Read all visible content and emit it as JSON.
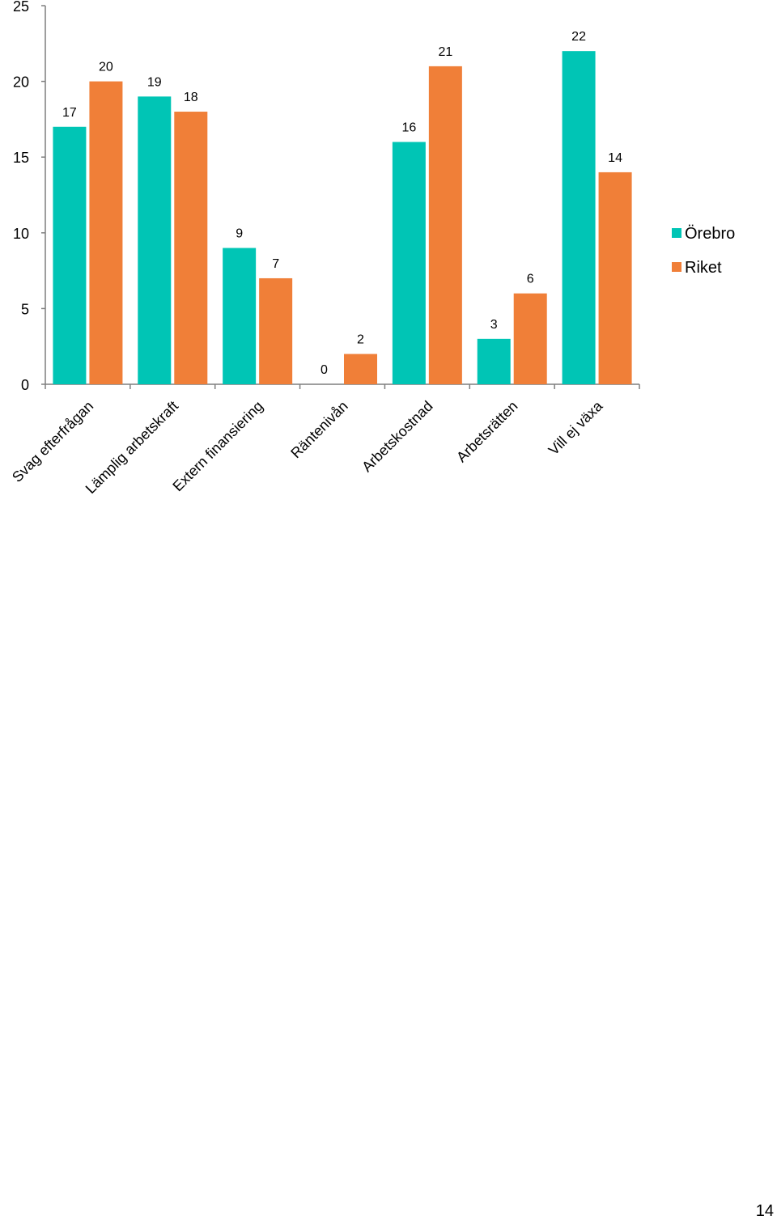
{
  "chart_data": {
    "type": "bar",
    "title": "",
    "xlabel": "",
    "ylabel": "",
    "ylim": [
      0,
      25
    ],
    "yticks": [
      0,
      5,
      10,
      15,
      20,
      25
    ],
    "grid": false,
    "legend_position": "right",
    "categories": [
      "Svag efterfrågan",
      "Lämplig arbetskraft",
      "Extern finansiering",
      "Räntenivån",
      "Arbetskostnad",
      "Arbetsrätten",
      "Vill ej växa"
    ],
    "series": [
      {
        "name": "Örebro",
        "color": "#00C5B5",
        "values": [
          17,
          19,
          9,
          0,
          16,
          3,
          22
        ]
      },
      {
        "name": "Riket",
        "color": "#F07F38",
        "values": [
          20,
          18,
          7,
          2,
          21,
          6,
          14
        ]
      }
    ]
  },
  "page_number": "14"
}
